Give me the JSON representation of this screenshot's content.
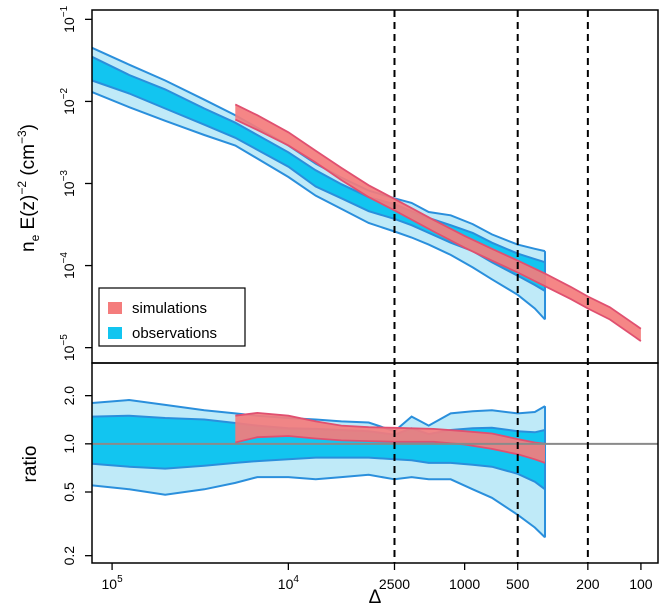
{
  "chart_data": {
    "type": "area",
    "x_axis": {
      "label": "Δ",
      "scale": "log",
      "reversed": true,
      "ticks": [
        {
          "value": 100000,
          "base": "10",
          "exp": "5"
        },
        {
          "value": 10000,
          "base": "10",
          "exp": "4"
        },
        {
          "value": 2500,
          "text": "2500"
        },
        {
          "value": 1000,
          "text": "1000"
        },
        {
          "value": 500,
          "text": "500"
        },
        {
          "value": 200,
          "text": "200"
        },
        {
          "value": 100,
          "text": "100"
        }
      ],
      "range": [
        130000,
        80
      ]
    },
    "vlines": [
      2500,
      500,
      200
    ],
    "top_panel": {
      "ylabel": {
        "main": "n",
        "sub": "e",
        "mid": " E(z)",
        "sup": "−2",
        "unit_open": "  (cm",
        "unit_sup": "−3",
        "unit_close": ")"
      },
      "y_scale": "log",
      "y_range": [
        6.5e-06,
        0.13
      ],
      "y_ticks": [
        {
          "value": 0.1,
          "base": "10",
          "exp": "−1"
        },
        {
          "value": 0.01,
          "base": "10",
          "exp": "−2"
        },
        {
          "value": 0.001,
          "base": "10",
          "exp": "−3"
        },
        {
          "value": 0.0001,
          "base": "10",
          "exp": "−4"
        },
        {
          "value": 1e-05,
          "base": "10",
          "exp": "−5"
        }
      ],
      "legend": {
        "position": "bottom-left",
        "entries": [
          {
            "label": "simulations",
            "color": "#f47c7c"
          },
          {
            "label": "observations",
            "color": "#12c5f0"
          }
        ]
      },
      "observations": {
        "x": [
          130000,
          80000,
          50000,
          30000,
          20000,
          10000,
          7000,
          5000,
          3500,
          2500,
          2000,
          1600,
          1200,
          900,
          700,
          500,
          400,
          350
        ],
        "outer_upper": [
          0.045,
          0.028,
          0.018,
          0.0105,
          0.0068,
          0.0029,
          0.00175,
          0.00118,
          0.00082,
          0.00066,
          0.00058,
          0.00045,
          0.00041,
          0.00032,
          0.00024,
          0.00018,
          0.00016,
          0.00015
        ],
        "inner_upper": [
          0.035,
          0.021,
          0.014,
          0.0082,
          0.0055,
          0.0024,
          0.00145,
          0.00098,
          0.00068,
          0.00056,
          0.00046,
          0.00038,
          0.00031,
          0.00025,
          0.00019,
          0.00014,
          0.00012,
          0.00011
        ],
        "inner_lower": [
          0.018,
          0.0125,
          0.0082,
          0.0052,
          0.0036,
          0.0016,
          0.00092,
          0.00066,
          0.00046,
          0.00037,
          0.00031,
          0.00025,
          0.00019,
          0.00015,
          0.00011,
          7.5e-05,
          5.8e-05,
          4.9e-05
        ],
        "outer_lower": [
          0.013,
          0.0085,
          0.0058,
          0.0039,
          0.0029,
          0.0012,
          0.00071,
          0.00049,
          0.00033,
          0.00026,
          0.00022,
          0.00018,
          0.000135,
          9.5e-05,
          6.8e-05,
          4.4e-05,
          3e-05,
          2.2e-05
        ]
      },
      "simulations": {
        "x": [
          20000,
          15000,
          10000,
          7000,
          5000,
          3500,
          2500,
          1500,
          1000,
          700,
          500,
          350,
          250,
          200,
          150,
          100
        ],
        "upper": [
          0.0092,
          0.0068,
          0.0042,
          0.0025,
          0.00155,
          0.00095,
          0.00065,
          0.00036,
          0.00023,
          0.00016,
          0.000115,
          8e-05,
          5.5e-05,
          4.2e-05,
          3.1e-05,
          1.7e-05
        ],
        "lower": [
          0.006,
          0.0045,
          0.0029,
          0.0018,
          0.0011,
          0.00068,
          0.00047,
          0.00026,
          0.000165,
          0.000115,
          8.2e-05,
          5.6e-05,
          3.9e-05,
          3e-05,
          2.2e-05,
          1.2e-05
        ]
      }
    },
    "bottom_panel": {
      "ylabel": "ratio",
      "y_scale": "log",
      "y_range": [
        0.18,
        3.2
      ],
      "y_ticks": [
        {
          "value": 2.0,
          "text": "2.0"
        },
        {
          "value": 1.0,
          "text": "1.0"
        },
        {
          "value": 0.5,
          "text": "0.5"
        },
        {
          "value": 0.2,
          "text": "0.2"
        }
      ],
      "reference_line": 1.0,
      "observations": {
        "x": [
          130000,
          80000,
          50000,
          30000,
          20000,
          15000,
          10000,
          7000,
          5000,
          3500,
          2500,
          2000,
          1600,
          1200,
          900,
          700,
          500,
          400,
          350
        ],
        "outer_upper": [
          1.8,
          1.88,
          1.75,
          1.62,
          1.55,
          1.5,
          1.45,
          1.42,
          1.38,
          1.36,
          1.2,
          1.48,
          1.3,
          1.55,
          1.6,
          1.62,
          1.55,
          1.58,
          1.72
        ],
        "inner_upper": [
          1.48,
          1.5,
          1.45,
          1.42,
          1.35,
          1.3,
          1.25,
          1.24,
          1.22,
          1.2,
          1.14,
          1.25,
          1.15,
          1.22,
          1.25,
          1.26,
          1.2,
          1.18,
          1.22
        ],
        "inner_lower": [
          0.75,
          0.72,
          0.7,
          0.73,
          0.76,
          0.78,
          0.8,
          0.82,
          0.82,
          0.82,
          0.8,
          0.79,
          0.76,
          0.76,
          0.74,
          0.72,
          0.65,
          0.58,
          0.52
        ],
        "outer_lower": [
          0.55,
          0.52,
          0.48,
          0.52,
          0.57,
          0.62,
          0.62,
          0.6,
          0.62,
          0.64,
          0.6,
          0.62,
          0.6,
          0.6,
          0.52,
          0.46,
          0.36,
          0.3,
          0.26
        ]
      },
      "simulations": {
        "x": [
          20000,
          15000,
          10000,
          7000,
          5000,
          3500,
          2500,
          1500,
          1000,
          700,
          500,
          400,
          350
        ],
        "upper": [
          1.5,
          1.56,
          1.5,
          1.38,
          1.3,
          1.27,
          1.26,
          1.24,
          1.2,
          1.16,
          1.07,
          1.02,
          1.0
        ],
        "lower": [
          1.02,
          1.1,
          1.12,
          1.08,
          1.05,
          1.04,
          1.03,
          1.03,
          0.99,
          0.93,
          0.86,
          0.8,
          0.76
        ]
      }
    },
    "colors": {
      "obs_outer_fill": "#bfeaf8",
      "obs_inner_fill": "#12c5f0",
      "obs_line": "#2a8fdc",
      "sim_fill": "#f47c7c",
      "sim_line": "#e05070",
      "ref_line": "#8a8a8a"
    }
  }
}
